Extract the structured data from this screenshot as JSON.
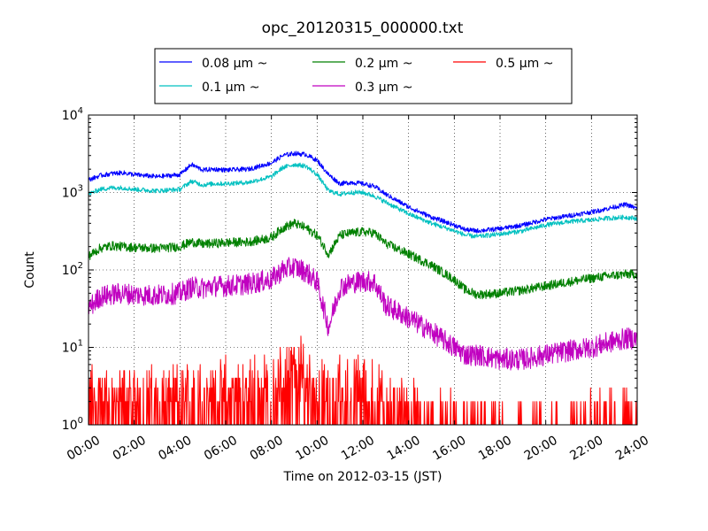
{
  "chart_data": {
    "type": "line",
    "title": "opc_20120315_000000.txt",
    "xlabel": "Time on 2012-03-15 (JST)",
    "ylabel": "Count",
    "yscale": "log",
    "ylim": [
      1,
      10000
    ],
    "xlim": [
      "00:00",
      "24:00"
    ],
    "x_ticks": [
      "00:00",
      "02:00",
      "04:00",
      "06:00",
      "08:00",
      "10:00",
      "12:00",
      "14:00",
      "16:00",
      "18:00",
      "20:00",
      "22:00",
      "24:00"
    ],
    "y_ticks": [
      {
        "value": 1,
        "base": "10",
        "exp": "0"
      },
      {
        "value": 10,
        "base": "10",
        "exp": "1"
      },
      {
        "value": 100,
        "base": "10",
        "exp": "2"
      },
      {
        "value": 1000,
        "base": "10",
        "exp": "3"
      },
      {
        "value": 10000,
        "base": "10",
        "exp": "4"
      }
    ],
    "grid": true,
    "legend_position": "top-center",
    "x_hours": [
      0,
      0.5,
      1,
      1.5,
      2,
      3,
      4,
      4.5,
      5,
      5.5,
      6,
      7,
      8,
      8.5,
      9,
      9.5,
      10,
      10.5,
      11,
      11.5,
      12,
      12.5,
      13,
      14,
      15,
      16,
      16.5,
      17,
      18,
      19,
      20,
      21,
      22,
      22.5,
      23,
      23.5,
      24
    ],
    "series": [
      {
        "name": "0.08 μm ~",
        "color": "#0000ff",
        "noise": 0.03,
        "values": [
          1450,
          1650,
          1750,
          1800,
          1700,
          1600,
          1700,
          2300,
          1950,
          2000,
          1950,
          2000,
          2400,
          3000,
          3200,
          3100,
          2600,
          1700,
          1300,
          1350,
          1300,
          1200,
          950,
          650,
          480,
          380,
          330,
          320,
          340,
          380,
          450,
          500,
          560,
          600,
          650,
          700,
          620
        ]
      },
      {
        "name": "0.1 μm ~",
        "color": "#00c0c0",
        "noise": 0.03,
        "values": [
          950,
          1100,
          1150,
          1150,
          1100,
          1050,
          1100,
          1400,
          1250,
          1300,
          1300,
          1350,
          1600,
          2100,
          2300,
          2200,
          1700,
          1050,
          950,
          1000,
          1000,
          900,
          750,
          530,
          400,
          320,
          280,
          270,
          290,
          320,
          380,
          420,
          440,
          460,
          470,
          480,
          460
        ]
      },
      {
        "name": "0.2 μm ~",
        "color": "#008000",
        "noise": 0.06,
        "values": [
          150,
          190,
          205,
          200,
          195,
          190,
          200,
          230,
          215,
          220,
          225,
          230,
          260,
          350,
          400,
          350,
          280,
          160,
          280,
          300,
          310,
          300,
          220,
          160,
          115,
          75,
          55,
          48,
          50,
          55,
          62,
          70,
          78,
          82,
          85,
          88,
          88
        ]
      },
      {
        "name": "0.3 μm ~",
        "color": "#c000c0",
        "noise": 0.14,
        "values": [
          32,
          45,
          48,
          50,
          48,
          47,
          50,
          60,
          58,
          62,
          62,
          66,
          75,
          100,
          110,
          95,
          70,
          18,
          60,
          68,
          72,
          70,
          35,
          24,
          16,
          10,
          8,
          8,
          7,
          7,
          8,
          9,
          10,
          11,
          12,
          13,
          13
        ]
      },
      {
        "name": "0.5 μm ~",
        "color": "#ff0000",
        "noise": 0.0,
        "values": [
          3,
          3,
          3,
          3,
          3,
          3,
          3,
          3.5,
          3.5,
          3.5,
          3.5,
          3.5,
          4.5,
          6,
          7,
          6,
          5,
          3,
          4,
          4,
          3.5,
          3.5,
          2.5,
          2,
          1.5,
          1.2,
          1.1,
          1.1,
          1.1,
          1.1,
          1.1,
          1.2,
          1.3,
          1.3,
          1.4,
          1.4,
          1.4
        ]
      }
    ]
  }
}
